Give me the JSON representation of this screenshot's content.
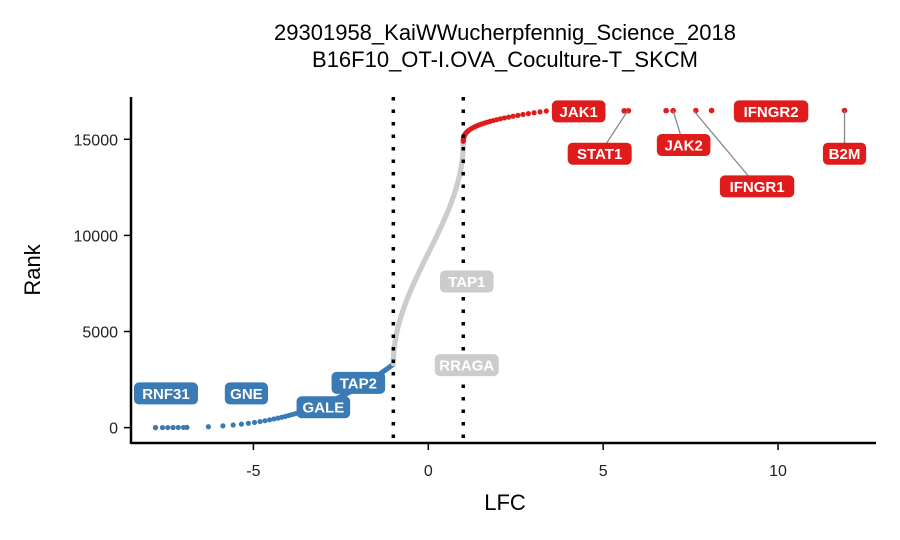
{
  "chart_data": {
    "type": "scatter",
    "title": "29301958_KaiWWucherpfennig_Science_2018",
    "subtitle": "B16F10_OT-I.OVA_Coculture-T_SKCM",
    "xlabel": "LFC",
    "ylabel": "Rank",
    "xlim": [
      -8.5,
      12.8
    ],
    "ylim": [
      -800,
      17200
    ],
    "x_ticks": [
      -5,
      0,
      5,
      10
    ],
    "y_ticks": [
      0,
      5000,
      10000,
      15000
    ],
    "x_tick_labels": [
      "-5",
      "0",
      "5",
      "10"
    ],
    "y_tick_labels": [
      "0",
      "5000",
      "10000",
      "15000"
    ],
    "grid": false,
    "legend": "none",
    "thresholds": [
      -1,
      1
    ],
    "colors": {
      "depleted": "#3a7ab5",
      "neutral": "#cccccc",
      "enriched": "#e01b1b",
      "leader": "#888888"
    },
    "curve": {
      "n_total": 16500,
      "depleted_range": [
        -7.8,
        -1.0
      ],
      "neutral_range": [
        -1.0,
        1.0
      ],
      "enriched_range": [
        1.0,
        3.5
      ]
    },
    "outliers": [
      {
        "x": 5.6,
        "y": 16480
      },
      {
        "x": 5.72,
        "y": 16485
      },
      {
        "x": 6.8,
        "y": 16490
      },
      {
        "x": 7.0,
        "y": 16490
      },
      {
        "x": 7.65,
        "y": 16495
      },
      {
        "x": 8.1,
        "y": 16495
      },
      {
        "x": 11.9,
        "y": 16498
      }
    ],
    "labels": [
      {
        "text": "JAK1",
        "x": 4.3,
        "y": 16450,
        "lx": 4.3,
        "ly": 16450,
        "group": "enriched"
      },
      {
        "text": "STAT1",
        "x": 5.7,
        "y": 16480,
        "lx": 4.9,
        "ly": 14250,
        "group": "enriched"
      },
      {
        "text": "JAK2",
        "x": 7.0,
        "y": 16490,
        "lx": 7.3,
        "ly": 14700,
        "group": "enriched"
      },
      {
        "text": "IFNGR1",
        "x": 7.6,
        "y": 16460,
        "lx": 9.4,
        "ly": 12550,
        "group": "enriched"
      },
      {
        "text": "IFNGR2",
        "x": 9.8,
        "y": 16450,
        "lx": 9.8,
        "ly": 16450,
        "group": "enriched"
      },
      {
        "text": "B2M",
        "x": 11.9,
        "y": 16498,
        "lx": 11.9,
        "ly": 14250,
        "group": "enriched"
      },
      {
        "text": "TAP1",
        "x": 1.1,
        "y": 7600,
        "lx": 1.1,
        "ly": 7600,
        "group": "neutral"
      },
      {
        "text": "RRAGA",
        "x": 1.1,
        "y": 3250,
        "lx": 1.1,
        "ly": 3250,
        "group": "neutral"
      },
      {
        "text": "RNF31",
        "x": -7.5,
        "y": 1780,
        "lx": -7.5,
        "ly": 1780,
        "group": "depleted"
      },
      {
        "text": "GNE",
        "x": -5.2,
        "y": 1780,
        "lx": -5.2,
        "ly": 1780,
        "group": "depleted"
      },
      {
        "text": "TAP2",
        "x": -2.0,
        "y": 2330,
        "lx": -2.0,
        "ly": 2330,
        "group": "depleted"
      },
      {
        "text": "GALE",
        "x": -3.0,
        "y": 1060,
        "lx": -3.0,
        "ly": 1060,
        "group": "depleted"
      }
    ]
  }
}
